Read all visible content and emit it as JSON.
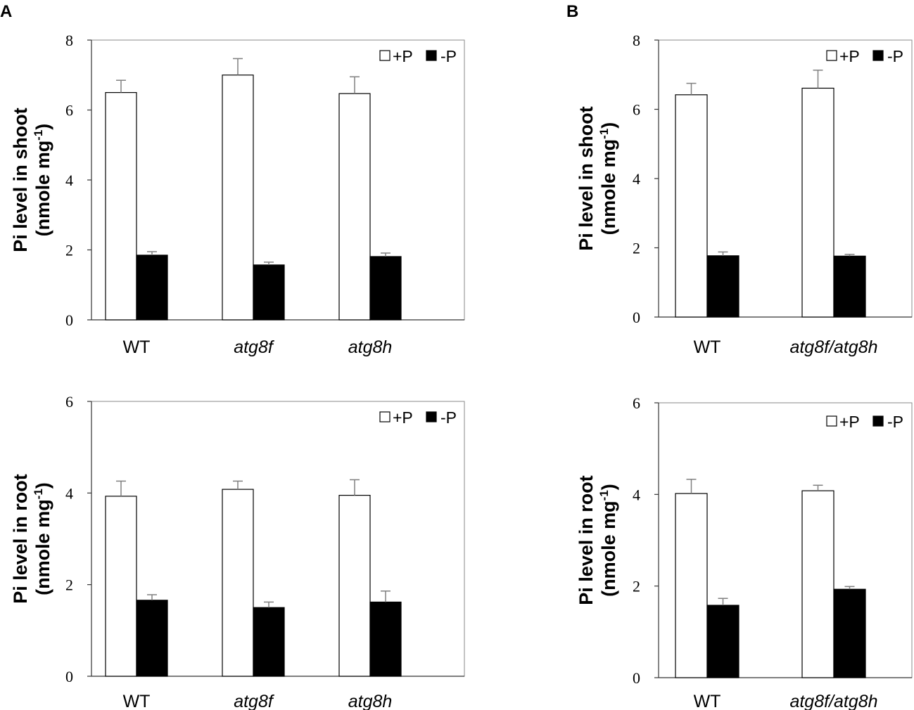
{
  "panels": {
    "a_label": "A",
    "b_label": "B"
  },
  "chart_data": [
    {
      "id": "A-shoot",
      "type": "bar",
      "categories": [
        "WT",
        "atg8f",
        "atg8h"
      ],
      "series": [
        {
          "name": "+P",
          "values": [
            6.5,
            7.0,
            6.47
          ],
          "errors": [
            0.35,
            0.47,
            0.48
          ]
        },
        {
          "name": "-P",
          "values": [
            1.85,
            1.57,
            1.81
          ],
          "errors": [
            0.1,
            0.08,
            0.1
          ]
        }
      ],
      "ylabel_main": "Pi level in shoot",
      "ylabel_unit": "(nmole mg",
      "ylabel_sup": "-1",
      "ylabel_close": ")",
      "ylim": [
        0,
        8
      ],
      "yticks": [
        0,
        2,
        4,
        6,
        8
      ],
      "legend_open": "+P",
      "legend_filled": "-P"
    },
    {
      "id": "A-root",
      "type": "bar",
      "categories": [
        "WT",
        "atg8f",
        "atg8h"
      ],
      "series": [
        {
          "name": "+P",
          "values": [
            3.93,
            4.08,
            3.95
          ],
          "errors": [
            0.33,
            0.18,
            0.34
          ]
        },
        {
          "name": "-P",
          "values": [
            1.66,
            1.5,
            1.62
          ],
          "errors": [
            0.12,
            0.12,
            0.24
          ]
        }
      ],
      "ylabel_main": "Pi level in root",
      "ylabel_unit": "(nmole mg",
      "ylabel_sup": "-1",
      "ylabel_close": ")",
      "ylim": [
        0,
        6
      ],
      "yticks": [
        0,
        2,
        4,
        6
      ],
      "legend_open": "+P",
      "legend_filled": "-P"
    },
    {
      "id": "B-shoot",
      "type": "bar",
      "categories": [
        "WT",
        "atg8f/atg8h"
      ],
      "series": [
        {
          "name": "+P",
          "values": [
            6.42,
            6.61
          ],
          "errors": [
            0.33,
            0.52
          ]
        },
        {
          "name": "-P",
          "values": [
            1.77,
            1.76
          ],
          "errors": [
            0.11,
            0.05
          ]
        }
      ],
      "ylabel_main": "Pi level in shoot",
      "ylabel_unit": "(nmole mg",
      "ylabel_sup": "-1",
      "ylabel_close": ")",
      "ylim": [
        0,
        8
      ],
      "yticks": [
        0,
        2,
        4,
        6,
        8
      ],
      "legend_open": "+P",
      "legend_filled": "-P"
    },
    {
      "id": "B-root",
      "type": "bar",
      "categories": [
        "WT",
        "atg8f/atg8h"
      ],
      "series": [
        {
          "name": "+P",
          "values": [
            4.02,
            4.08
          ],
          "errors": [
            0.31,
            0.12
          ]
        },
        {
          "name": "-P",
          "values": [
            1.58,
            1.93
          ],
          "errors": [
            0.15,
            0.06
          ]
        }
      ],
      "ylabel_main": "Pi level in root",
      "ylabel_unit": "(nmole mg",
      "ylabel_sup": "-1",
      "ylabel_close": ")",
      "ylim": [
        0,
        6
      ],
      "yticks": [
        0,
        2,
        4,
        6
      ],
      "legend_open": "+P",
      "legend_filled": "-P"
    }
  ]
}
